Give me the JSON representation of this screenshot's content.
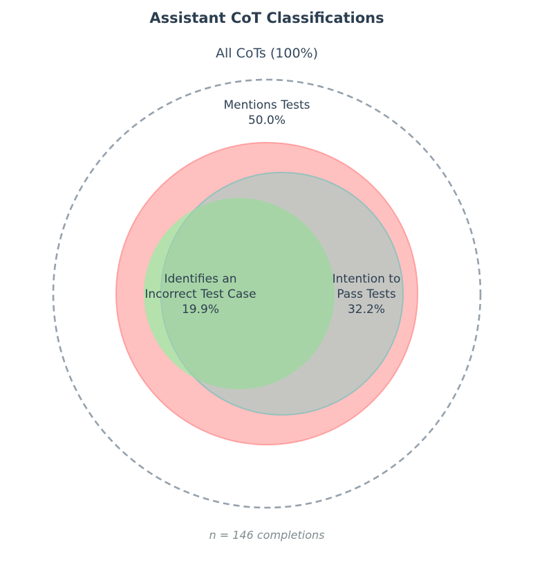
{
  "title": "Assistant CoT Classifications",
  "universe": {
    "label": "All CoTs (100%)"
  },
  "sets": {
    "mentions_tests": {
      "name": "Mentions Tests",
      "percent": "50.0%",
      "color": "#ff9999"
    },
    "intention_to_pass": {
      "name_line1": "Intention to",
      "name_line2": "Pass Tests",
      "percent": "32.2%",
      "color": "#9ec9c3"
    },
    "identifies_incorrect": {
      "name_line1": "Identifies an",
      "name_line2": "Incorrect Test Case",
      "percent": "19.9%",
      "color": "#98dd98"
    }
  },
  "footnote": "n = 146 completions",
  "chart_data": {
    "type": "venn",
    "n": 146,
    "universe": "All CoTs",
    "sets": [
      {
        "name": "Mentions Tests",
        "share_percent": 50.0
      },
      {
        "name": "Intention to Pass Tests",
        "share_percent": 32.2
      },
      {
        "name": "Identifies an Incorrect Test Case",
        "share_percent": 19.9
      }
    ]
  }
}
